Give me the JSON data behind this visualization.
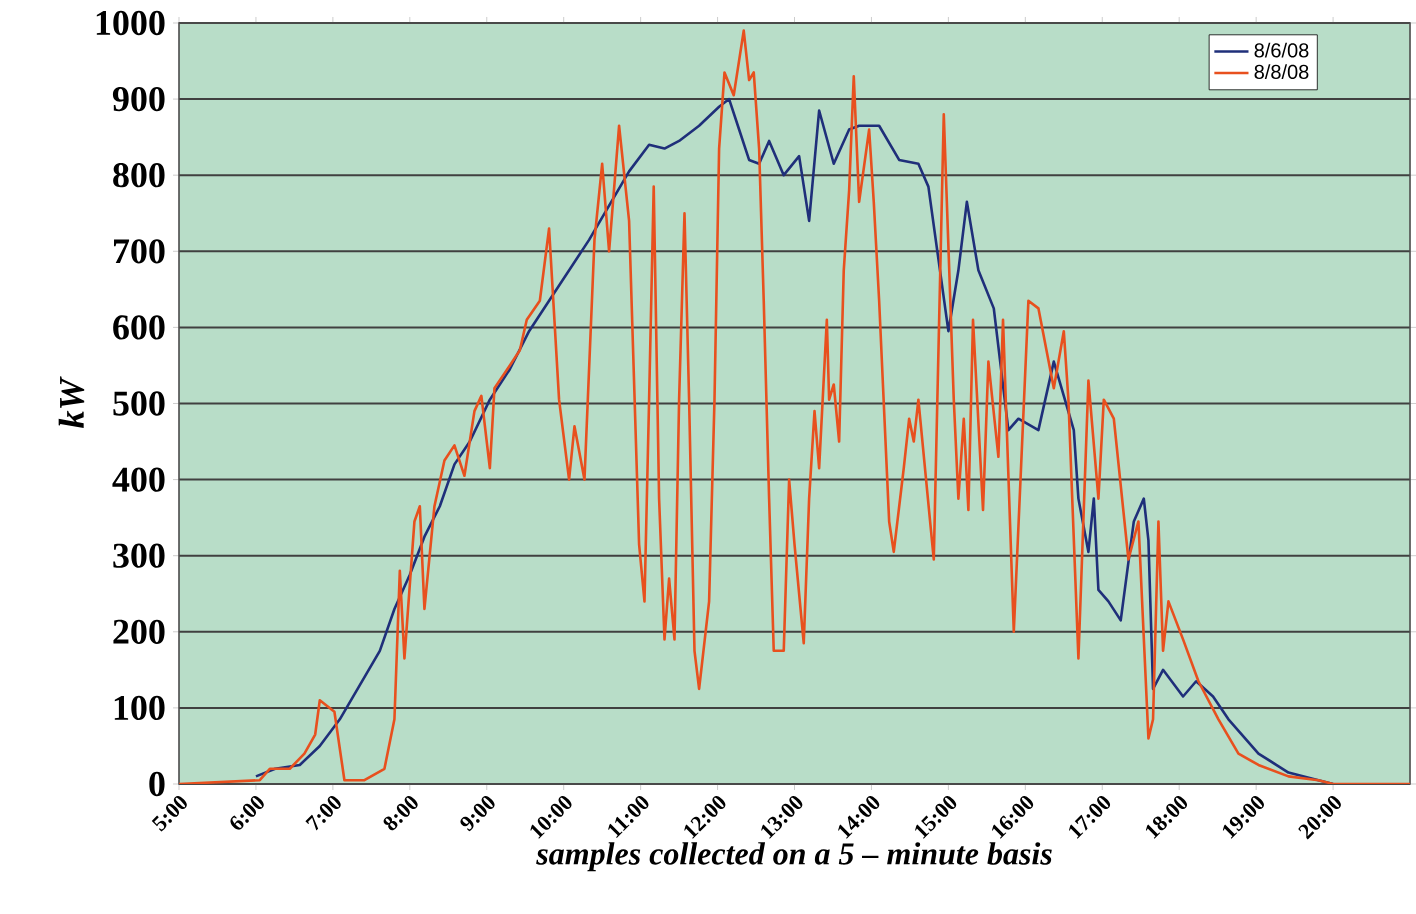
{
  "chart_data": {
    "type": "line",
    "xlabel": "samples collected on a 5 – minute basis",
    "ylabel": "kW",
    "xlim": [
      5,
      21
    ],
    "ylim": [
      0,
      1000
    ],
    "xticks": [
      {
        "value": 5,
        "label": "5:00"
      },
      {
        "value": 6,
        "label": "6:00"
      },
      {
        "value": 7,
        "label": "7:00"
      },
      {
        "value": 8,
        "label": "8:00"
      },
      {
        "value": 9,
        "label": "9:00"
      },
      {
        "value": 10,
        "label": "10:00"
      },
      {
        "value": 11,
        "label": "11:00"
      },
      {
        "value": 12,
        "label": "12:00"
      },
      {
        "value": 13,
        "label": "13:00"
      },
      {
        "value": 14,
        "label": "14:00"
      },
      {
        "value": 15,
        "label": "15:00"
      },
      {
        "value": 16,
        "label": "16:00"
      },
      {
        "value": 17,
        "label": "17:00"
      },
      {
        "value": 18,
        "label": "18:00"
      },
      {
        "value": 19,
        "label": "19:00"
      },
      {
        "value": 20,
        "label": "20:00"
      }
    ],
    "yticks": [
      0,
      100,
      200,
      300,
      400,
      500,
      600,
      700,
      800,
      900,
      1000
    ],
    "grid": "y",
    "legend": "top right",
    "marker": "none",
    "line_style": "solid",
    "series": [
      {
        "name": "8/6/08",
        "color": "#1f2f7a",
        "x": [
          6.0,
          6.25,
          6.57,
          6.83,
          7.09,
          7.35,
          7.61,
          7.8,
          8.0,
          8.19,
          8.39,
          8.58,
          8.78,
          9.04,
          9.3,
          9.55,
          9.81,
          10.07,
          10.33,
          10.59,
          10.85,
          11.11,
          11.31,
          11.5,
          11.76,
          12.02,
          12.15,
          12.28,
          12.41,
          12.54,
          12.67,
          12.86,
          13.06,
          13.19,
          13.32,
          13.51,
          13.71,
          13.84,
          14.1,
          14.36,
          14.61,
          14.74,
          14.87,
          15.0,
          15.13,
          15.24,
          15.39,
          15.59,
          15.78,
          15.91,
          16.17,
          16.37,
          16.63,
          16.69,
          16.82,
          16.89,
          16.95,
          17.08,
          17.24,
          17.41,
          17.54,
          17.6,
          17.66,
          17.79,
          18.05,
          18.22,
          18.44,
          18.64,
          19.03,
          19.42,
          19.81,
          20.0
        ],
        "values": [
          10,
          20,
          25,
          50,
          85,
          130,
          175,
          230,
          275,
          325,
          365,
          420,
          450,
          505,
          545,
          595,
          635,
          675,
          715,
          760,
          805,
          840,
          835,
          845,
          865,
          890,
          900,
          860,
          820,
          815,
          845,
          800,
          825,
          740,
          885,
          815,
          860,
          865,
          865,
          820,
          815,
          785,
          690,
          595,
          675,
          765,
          675,
          625,
          465,
          480,
          465,
          555,
          465,
          375,
          305,
          375,
          255,
          240,
          215,
          345,
          375,
          320,
          125,
          150,
          115,
          135,
          115,
          85,
          40,
          15,
          5,
          0
        ]
      },
      {
        "name": "8/8/08",
        "color": "#e8501e",
        "x": [
          5.0,
          6.05,
          6.18,
          6.44,
          6.63,
          6.77,
          6.83,
          7.02,
          7.15,
          7.41,
          7.67,
          7.8,
          7.87,
          7.93,
          8.06,
          8.13,
          8.19,
          8.32,
          8.45,
          8.58,
          8.71,
          8.84,
          8.93,
          9.04,
          9.1,
          9.3,
          9.43,
          9.52,
          9.69,
          9.81,
          9.94,
          10.07,
          10.14,
          10.27,
          10.4,
          10.5,
          10.59,
          10.72,
          10.85,
          10.98,
          11.05,
          11.11,
          11.17,
          11.24,
          11.31,
          11.37,
          11.44,
          11.5,
          11.57,
          11.63,
          11.7,
          11.76,
          11.89,
          11.96,
          12.02,
          12.09,
          12.21,
          12.34,
          12.41,
          12.47,
          12.54,
          12.6,
          12.67,
          12.73,
          12.86,
          12.93,
          13.0,
          13.12,
          13.19,
          13.26,
          13.32,
          13.42,
          13.45,
          13.51,
          13.58,
          13.64,
          13.71,
          13.77,
          13.84,
          13.97,
          14.03,
          14.1,
          14.23,
          14.29,
          14.42,
          14.49,
          14.55,
          14.61,
          14.81,
          14.94,
          15.07,
          15.13,
          15.2,
          15.26,
          15.32,
          15.45,
          15.52,
          15.65,
          15.71,
          15.85,
          16.04,
          16.17,
          16.37,
          16.5,
          16.56,
          16.69,
          16.82,
          16.95,
          17.02,
          17.15,
          17.34,
          17.47,
          17.6,
          17.66,
          17.73,
          17.79,
          17.86,
          18.05,
          18.25,
          18.51,
          18.77,
          19.03,
          19.42,
          19.81,
          20.0,
          21.0
        ],
        "values": [
          0,
          5,
          20,
          20,
          40,
          65,
          110,
          95,
          5,
          5,
          20,
          85,
          280,
          165,
          345,
          365,
          230,
          365,
          425,
          445,
          405,
          490,
          510,
          415,
          520,
          550,
          570,
          610,
          635,
          730,
          505,
          400,
          470,
          400,
          715,
          815,
          700,
          865,
          740,
          315,
          240,
          505,
          785,
          375,
          190,
          270,
          190,
          505,
          750,
          505,
          175,
          125,
          240,
          505,
          835,
          935,
          905,
          990,
          925,
          935,
          835,
          635,
          375,
          175,
          175,
          400,
          315,
          185,
          375,
          490,
          415,
          610,
          505,
          525,
          450,
          675,
          780,
          930,
          765,
          860,
          765,
          635,
          345,
          305,
          415,
          480,
          450,
          505,
          295,
          880,
          505,
          375,
          480,
          360,
          610,
          360,
          555,
          430,
          610,
          200,
          635,
          625,
          520,
          595,
          505,
          165,
          530,
          375,
          505,
          480,
          295,
          345,
          60,
          85,
          345,
          175,
          240,
          190,
          135,
          85,
          40,
          25,
          10,
          5,
          0,
          0
        ]
      }
    ]
  }
}
